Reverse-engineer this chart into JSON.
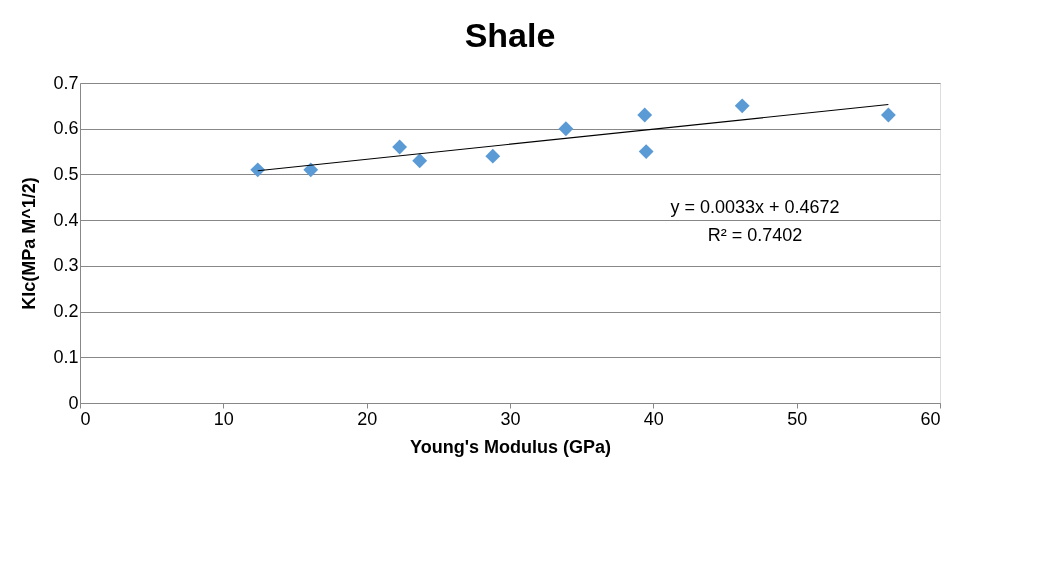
{
  "chart_data": {
    "type": "scatter",
    "title": "Shale",
    "xlabel": "Young's Modulus (GPa)",
    "ylabel": "KIc(MPa M^1/2)",
    "x": [
      12.4,
      16.1,
      22.3,
      23.7,
      28.8,
      33.9,
      39.4,
      39.5,
      46.2,
      56.4
    ],
    "series": [
      {
        "marker": "diamond",
        "color": "#5b9bd5",
        "values": [
          0.51,
          0.51,
          0.56,
          0.53,
          0.54,
          0.6,
          0.63,
          0.55,
          0.65,
          0.63
        ]
      },
      {
        "type": "line",
        "color": "#000000",
        "x": [
          12.4,
          56.4
        ],
        "values": [
          0.508,
          0.653
        ]
      }
    ],
    "annotations": [
      "y = 0.0033x + 0.4672",
      "R² = 0.7402"
    ],
    "xlim": [
      0,
      60
    ],
    "xticks": [
      0,
      10,
      20,
      30,
      40,
      50,
      60
    ],
    "ylim": [
      0,
      0.7
    ],
    "yticks": [
      0,
      0.1,
      0.2,
      0.3,
      0.4,
      0.5,
      0.6,
      0.7
    ],
    "grid": "y"
  }
}
